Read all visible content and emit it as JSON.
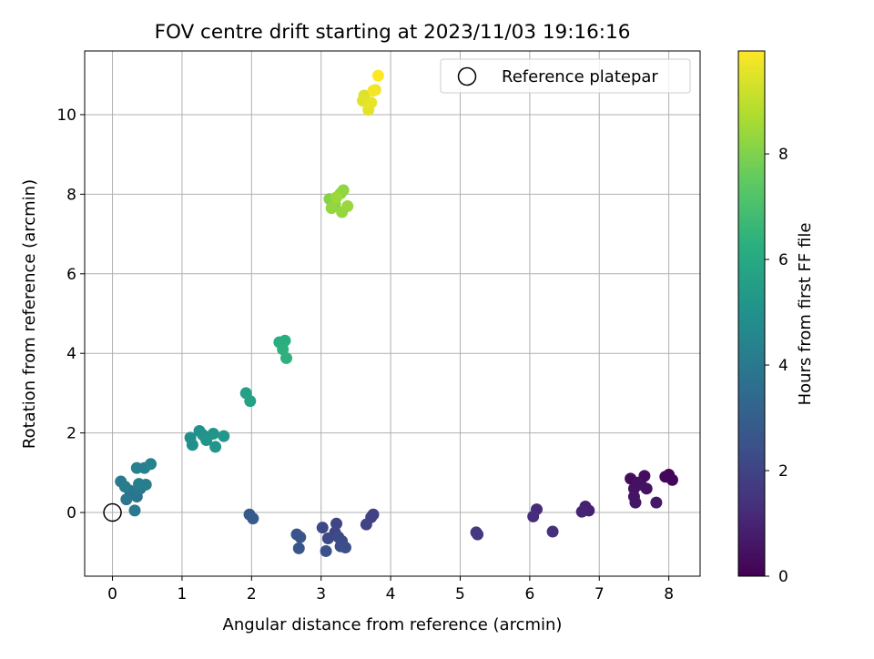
{
  "chart_data": {
    "type": "scatter",
    "title": "FOV centre drift starting at 2023/11/03 19:16:16",
    "xlabel": "Angular distance from reference (arcmin)",
    "ylabel": "Rotation from reference (arcmin)",
    "xlim": [
      -0.4,
      8.45
    ],
    "ylim": [
      -1.6,
      11.6
    ],
    "xticks": [
      0,
      1,
      2,
      3,
      4,
      5,
      6,
      7,
      8
    ],
    "yticks": [
      0,
      2,
      4,
      6,
      8,
      10
    ],
    "grid": true,
    "legend": {
      "placement": "top-right",
      "entries": [
        "Reference platepar"
      ]
    },
    "colormap": "viridis",
    "colorbar": {
      "label": "Hours from first FF file",
      "range": [
        0,
        9.95
      ],
      "ticks": [
        0,
        2,
        4,
        6,
        8
      ]
    },
    "reference_point": {
      "x": 0,
      "y": 0,
      "label": "Reference platepar"
    },
    "points": [
      {
        "x": 8.0,
        "y": 0.95,
        "h": 0.1
      },
      {
        "x": 8.05,
        "y": 0.82,
        "h": 0.15
      },
      {
        "x": 7.95,
        "y": 0.9,
        "h": 0.2
      },
      {
        "x": 7.45,
        "y": 0.85,
        "h": 0.3
      },
      {
        "x": 7.65,
        "y": 0.92,
        "h": 0.35
      },
      {
        "x": 7.6,
        "y": 0.7,
        "h": 0.4
      },
      {
        "x": 7.68,
        "y": 0.6,
        "h": 0.45
      },
      {
        "x": 7.5,
        "y": 0.6,
        "h": 0.5
      },
      {
        "x": 7.5,
        "y": 0.4,
        "h": 0.55
      },
      {
        "x": 7.52,
        "y": 0.25,
        "h": 0.6
      },
      {
        "x": 7.82,
        "y": 0.25,
        "h": 0.65
      },
      {
        "x": 7.55,
        "y": 0.75,
        "h": 0.45
      },
      {
        "x": 6.8,
        "y": 0.15,
        "h": 0.9
      },
      {
        "x": 6.85,
        "y": 0.05,
        "h": 0.95
      },
      {
        "x": 6.75,
        "y": 0.02,
        "h": 1.0
      },
      {
        "x": 6.1,
        "y": 0.08,
        "h": 1.2
      },
      {
        "x": 6.05,
        "y": -0.1,
        "h": 1.25
      },
      {
        "x": 6.33,
        "y": -0.48,
        "h": 1.35
      },
      {
        "x": 5.23,
        "y": -0.5,
        "h": 1.6
      },
      {
        "x": 5.25,
        "y": -0.55,
        "h": 1.65
      },
      {
        "x": 3.75,
        "y": -0.05,
        "h": 1.9
      },
      {
        "x": 3.72,
        "y": -0.12,
        "h": 1.95
      },
      {
        "x": 3.65,
        "y": -0.3,
        "h": 2.0
      },
      {
        "x": 3.22,
        "y": -0.28,
        "h": 2.05
      },
      {
        "x": 3.2,
        "y": -0.5,
        "h": 2.1
      },
      {
        "x": 3.02,
        "y": -0.38,
        "h": 2.15
      },
      {
        "x": 3.1,
        "y": -0.65,
        "h": 2.2
      },
      {
        "x": 3.25,
        "y": -0.62,
        "h": 2.25
      },
      {
        "x": 3.3,
        "y": -0.72,
        "h": 2.3
      },
      {
        "x": 3.28,
        "y": -0.85,
        "h": 2.35
      },
      {
        "x": 3.35,
        "y": -0.88,
        "h": 2.4
      },
      {
        "x": 3.07,
        "y": -0.97,
        "h": 2.45
      },
      {
        "x": 2.65,
        "y": -0.55,
        "h": 2.55
      },
      {
        "x": 2.7,
        "y": -0.62,
        "h": 2.6
      },
      {
        "x": 2.68,
        "y": -0.9,
        "h": 2.65
      },
      {
        "x": 1.97,
        "y": -0.05,
        "h": 2.8
      },
      {
        "x": 2.02,
        "y": -0.15,
        "h": 2.85
      },
      {
        "x": 0.35,
        "y": 0.4,
        "h": 3.8
      },
      {
        "x": 0.3,
        "y": 0.48,
        "h": 3.85
      },
      {
        "x": 0.25,
        "y": 0.55,
        "h": 3.9
      },
      {
        "x": 0.2,
        "y": 0.33,
        "h": 3.95
      },
      {
        "x": 0.4,
        "y": 0.6,
        "h": 4.0
      },
      {
        "x": 0.32,
        "y": 0.05,
        "h": 4.05
      },
      {
        "x": 0.12,
        "y": 0.78,
        "h": 4.1
      },
      {
        "x": 0.18,
        "y": 0.65,
        "h": 4.15
      },
      {
        "x": 0.48,
        "y": 0.7,
        "h": 4.2
      },
      {
        "x": 0.38,
        "y": 0.72,
        "h": 4.25
      },
      {
        "x": 0.35,
        "y": 1.12,
        "h": 4.3
      },
      {
        "x": 0.46,
        "y": 1.12,
        "h": 4.35
      },
      {
        "x": 0.55,
        "y": 1.22,
        "h": 4.4
      },
      {
        "x": 1.12,
        "y": 1.88,
        "h": 4.9
      },
      {
        "x": 1.15,
        "y": 1.7,
        "h": 4.95
      },
      {
        "x": 1.25,
        "y": 2.05,
        "h": 5.0
      },
      {
        "x": 1.3,
        "y": 1.95,
        "h": 5.05
      },
      {
        "x": 1.35,
        "y": 1.82,
        "h": 5.1
      },
      {
        "x": 1.45,
        "y": 1.98,
        "h": 5.15
      },
      {
        "x": 1.48,
        "y": 1.65,
        "h": 5.2
      },
      {
        "x": 1.6,
        "y": 1.92,
        "h": 5.25
      },
      {
        "x": 1.92,
        "y": 3.0,
        "h": 5.6
      },
      {
        "x": 1.98,
        "y": 2.8,
        "h": 5.65
      },
      {
        "x": 2.4,
        "y": 4.28,
        "h": 6.2
      },
      {
        "x": 2.48,
        "y": 4.32,
        "h": 6.25
      },
      {
        "x": 2.45,
        "y": 4.1,
        "h": 6.3
      },
      {
        "x": 2.5,
        "y": 3.88,
        "h": 6.35
      },
      {
        "x": 3.12,
        "y": 7.88,
        "h": 8.1
      },
      {
        "x": 3.2,
        "y": 7.75,
        "h": 8.15
      },
      {
        "x": 3.28,
        "y": 8.02,
        "h": 8.2
      },
      {
        "x": 3.32,
        "y": 8.1,
        "h": 8.25
      },
      {
        "x": 3.15,
        "y": 7.65,
        "h": 8.3
      },
      {
        "x": 3.3,
        "y": 7.55,
        "h": 8.35
      },
      {
        "x": 3.38,
        "y": 7.7,
        "h": 8.4
      },
      {
        "x": 3.22,
        "y": 7.92,
        "h": 8.45
      },
      {
        "x": 3.62,
        "y": 10.48,
        "h": 9.4
      },
      {
        "x": 3.6,
        "y": 10.35,
        "h": 9.5
      },
      {
        "x": 3.68,
        "y": 10.12,
        "h": 9.55
      },
      {
        "x": 3.72,
        "y": 10.3,
        "h": 9.6
      },
      {
        "x": 3.78,
        "y": 10.62,
        "h": 9.7
      },
      {
        "x": 3.75,
        "y": 10.6,
        "h": 9.8
      },
      {
        "x": 3.82,
        "y": 10.98,
        "h": 9.95
      }
    ]
  }
}
